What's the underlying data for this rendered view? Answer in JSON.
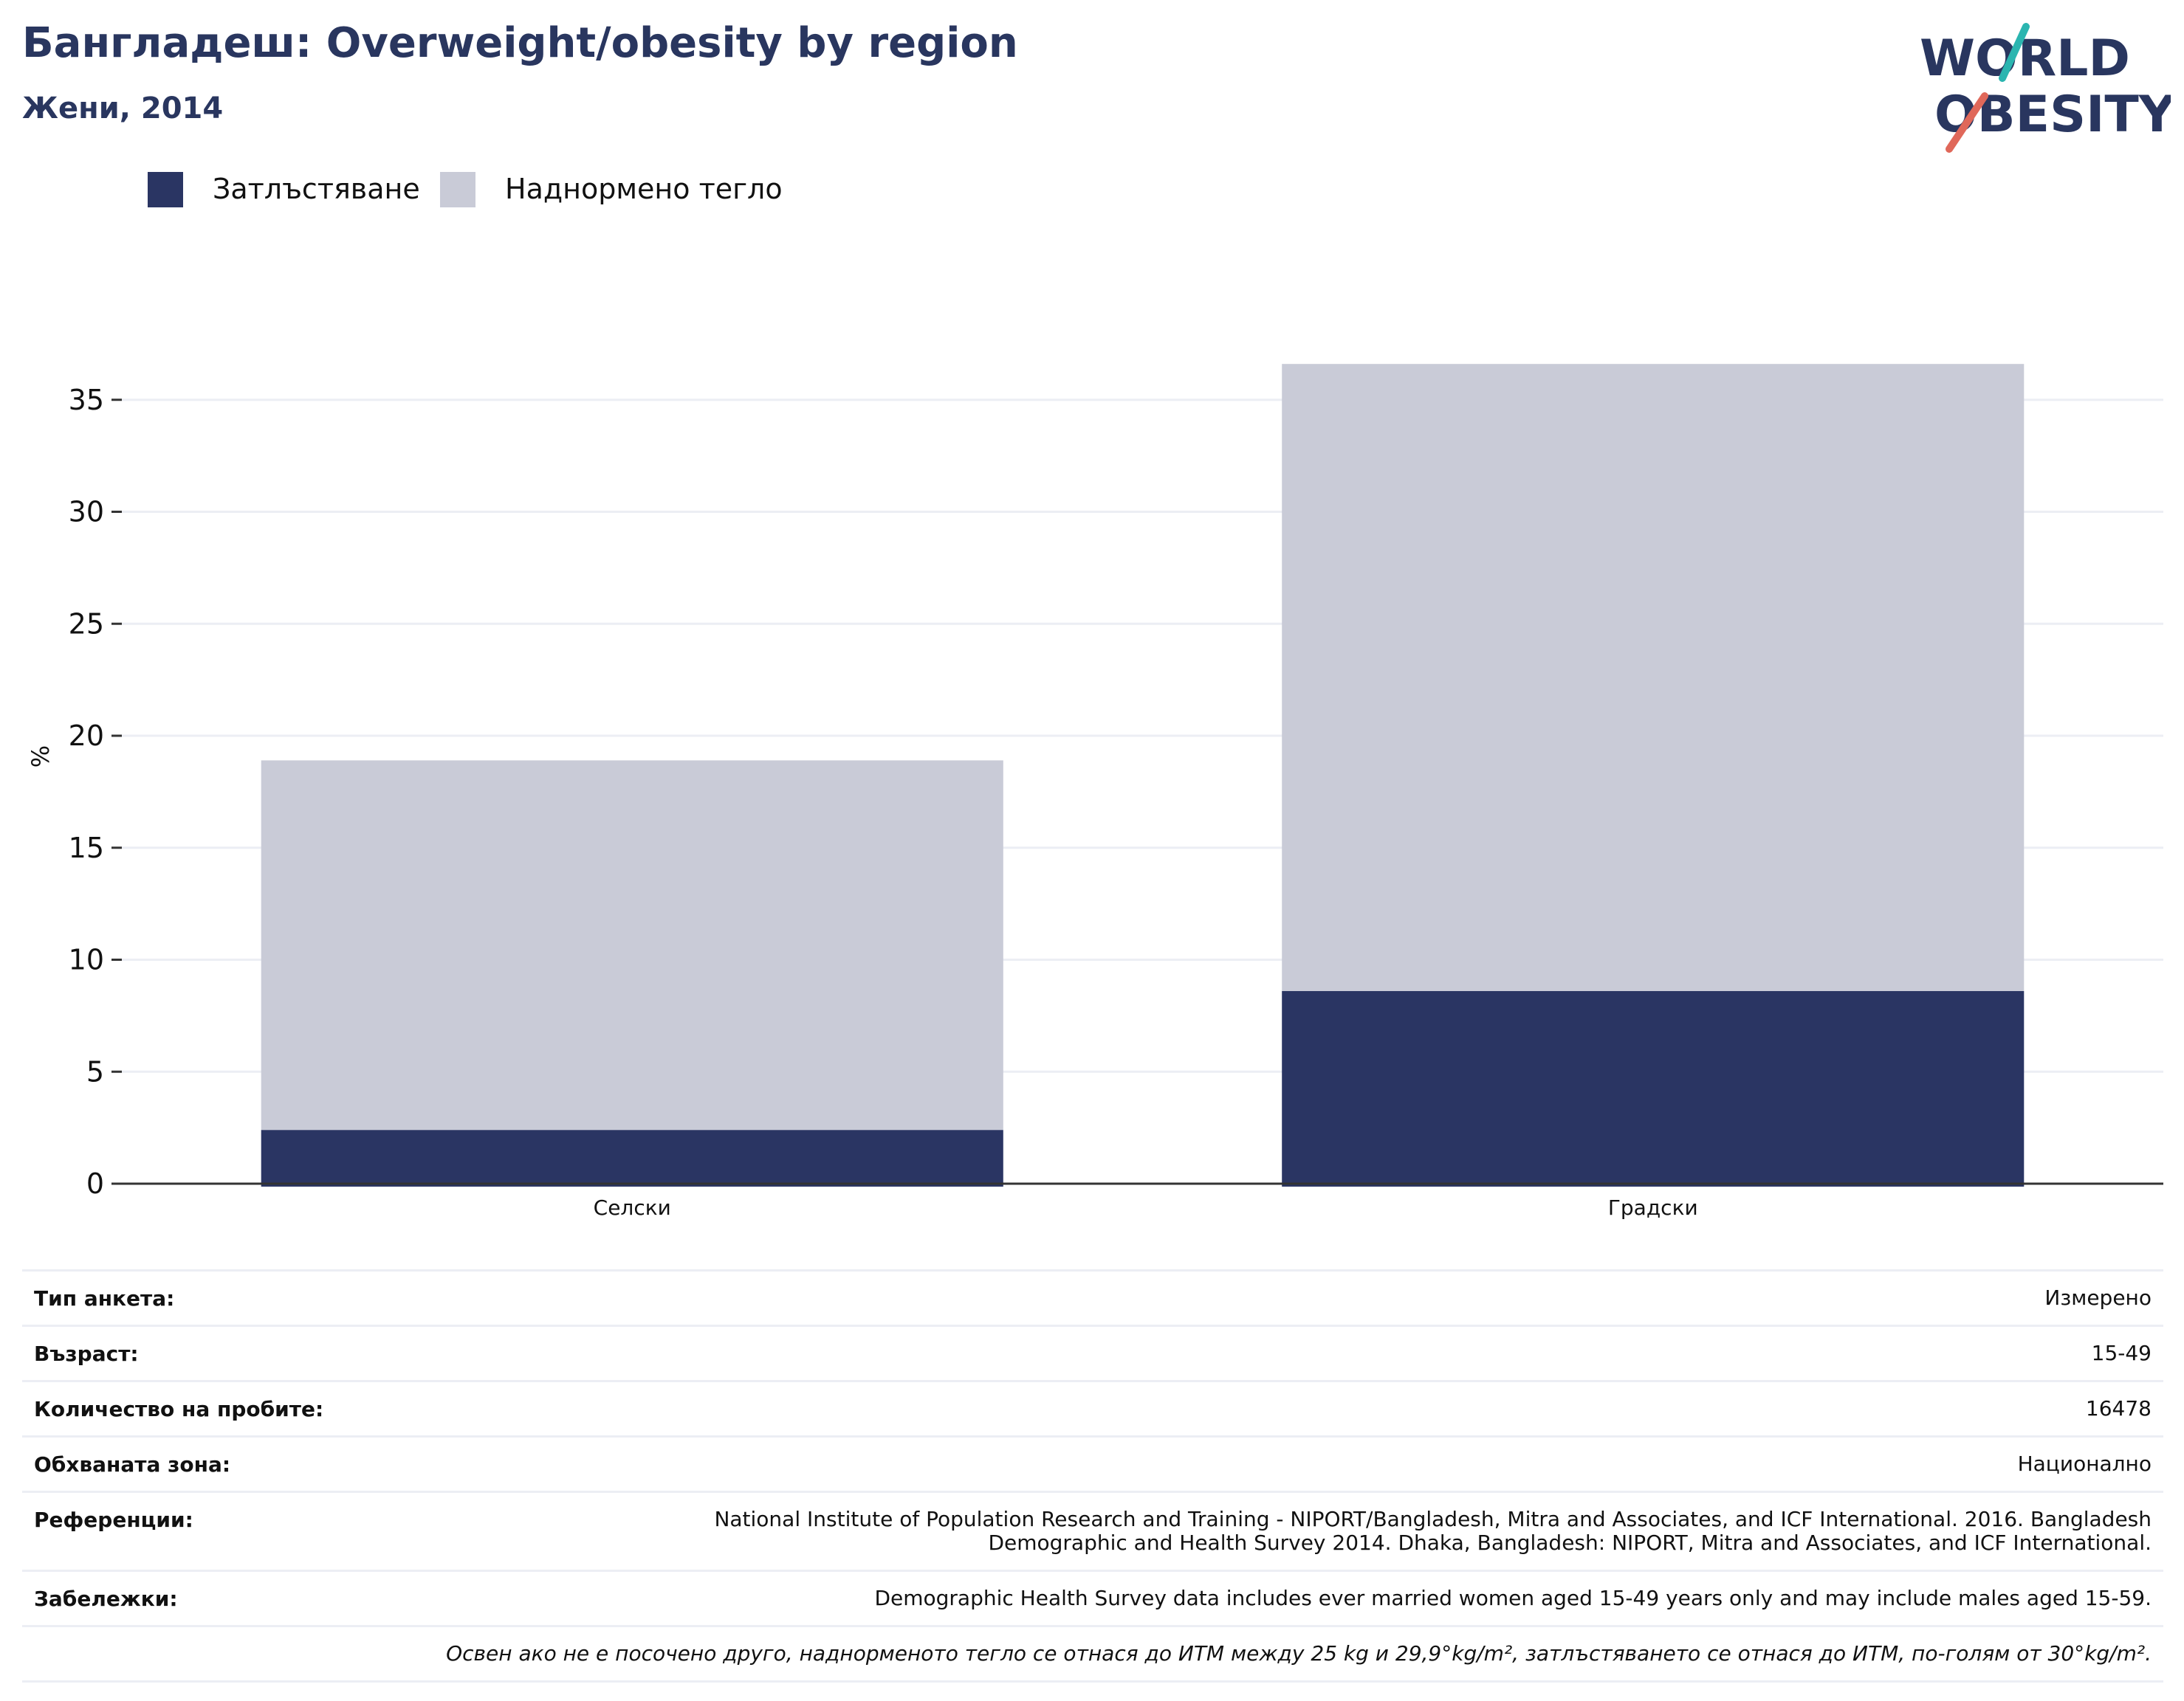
{
  "header": {
    "title": "Бангладеш: Overweight/obesity by region",
    "subtitle": "Жени, 2014"
  },
  "logo": {
    "line1": "WORLD",
    "line2": "OBESITY"
  },
  "colors": {
    "obesity": "#2a3563",
    "overweight": "#c9cbd7",
    "title": "#29365f",
    "grid": "#eceef4"
  },
  "legend": [
    {
      "label": "Затлъстяване",
      "color": "#2a3563"
    },
    {
      "label": "Наднормено тегло",
      "color": "#c9cbd7"
    }
  ],
  "chart_data": {
    "type": "bar",
    "stacked": true,
    "categories": [
      "Селски",
      "Градски"
    ],
    "series": [
      {
        "name": "Затлъстяване",
        "values": [
          2.4,
          8.6
        ],
        "color": "#2a3563"
      },
      {
        "name": "Наднормено тегло",
        "values": [
          16.5,
          28.0
        ],
        "color": "#c9cbd7"
      }
    ],
    "ylabel": "%",
    "ylim": [
      0,
      37
    ],
    "yticks": [
      0,
      5,
      10,
      15,
      20,
      25,
      30,
      35
    ],
    "grid": true,
    "legend_position": "top-left"
  },
  "info": [
    {
      "key": "Тип анкета:",
      "value": "Измерено"
    },
    {
      "key": "Възраст:",
      "value": "15-49"
    },
    {
      "key": "Количество на пробите:",
      "value": "16478"
    },
    {
      "key": "Обхваната зона:",
      "value": "Национално"
    },
    {
      "key": "Референции:",
      "value": "National Institute of Population Research and Training - NIPORT/Bangladesh, Mitra and Associates, and ICF International. 2016. Bangladesh Demographic and Health Survey 2014. Dhaka, Bangladesh: NIPORT, Mitra and Associates, and ICF International."
    },
    {
      "key": "Забележки:",
      "value": "Demographic Health Survey data includes ever married women aged 15-49 years only and may include males aged 15-59."
    }
  ],
  "footnote": "Освен ако не е посочено друго, наднорменото тегло се отнася до ИТМ между 25 kg и 29,9°kg/m², затлъстяването се отнася до ИТМ, по-голям от 30°kg/m²."
}
